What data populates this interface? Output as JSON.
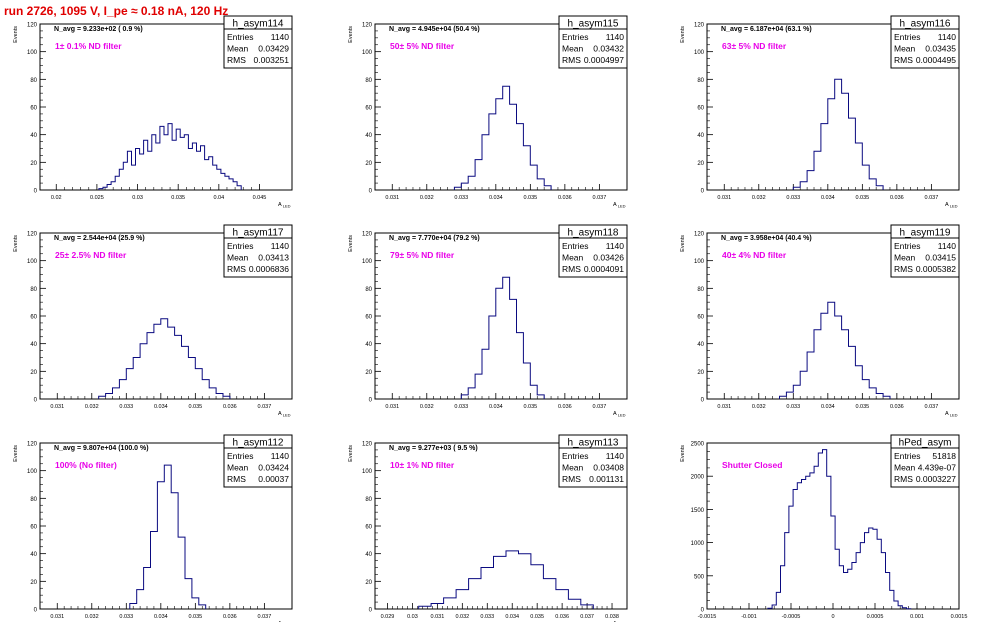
{
  "page": {
    "title": "run 2726,  1095 V, I_pe ≈ 0.18 nA, 120 Hz"
  },
  "chart_data": [
    {
      "type": "histogram",
      "hist_name": "h_asym114",
      "navg": "N_avg = 9.233e+02 ( 0.9 %)",
      "label": "1± 0.1% ND filter",
      "ylabel": "Events",
      "xlabel": "A_LED",
      "xlim": [
        0.018,
        0.049
      ],
      "ylim": [
        0,
        120
      ],
      "x_ticks": [
        0.02,
        0.025,
        0.03,
        0.035,
        0.04,
        0.045
      ],
      "x_tick_labels": [
        "0.02",
        "0.025",
        "0.03",
        "0.035",
        "0.04",
        "0.045"
      ],
      "y_ticks": [
        0,
        20,
        40,
        60,
        80,
        100,
        120
      ],
      "stats": {
        "entries": "1140",
        "mean": "0.03429",
        "rms": "0.003251"
      },
      "x": [
        0.0255,
        0.026,
        0.0265,
        0.027,
        0.0275,
        0.028,
        0.0285,
        0.029,
        0.0295,
        0.03,
        0.0305,
        0.031,
        0.0315,
        0.032,
        0.0325,
        0.033,
        0.0335,
        0.034,
        0.0345,
        0.035,
        0.0355,
        0.036,
        0.0365,
        0.037,
        0.0375,
        0.038,
        0.0385,
        0.039,
        0.0395,
        0.04,
        0.0405,
        0.041,
        0.0415,
        0.042,
        0.0425
      ],
      "values": [
        1,
        2,
        4,
        6,
        10,
        15,
        20,
        28,
        18,
        30,
        26,
        36,
        28,
        40,
        34,
        46,
        40,
        48,
        36,
        44,
        38,
        40,
        30,
        34,
        28,
        32,
        22,
        24,
        18,
        15,
        12,
        10,
        8,
        6,
        3
      ]
    },
    {
      "type": "histogram",
      "hist_name": "h_asym115",
      "navg": "N_avg = 4.945e+04 (50.4 %)",
      "label": "50± 5% ND filter",
      "ylabel": "Events",
      "xlabel": "A_LED",
      "xlim": [
        0.0305,
        0.0378
      ],
      "ylim": [
        0,
        120
      ],
      "x_ticks": [
        0.031,
        0.032,
        0.033,
        0.034,
        0.035,
        0.036,
        0.037
      ],
      "x_tick_labels": [
        "0.031",
        "0.032",
        "0.033",
        "0.034",
        "0.035",
        "0.036",
        "0.037"
      ],
      "y_ticks": [
        0,
        20,
        40,
        60,
        80,
        100,
        120
      ],
      "stats": {
        "entries": "1140",
        "mean": "0.03432",
        "rms": "0.0004997"
      },
      "x": [
        0.0329,
        0.0331,
        0.0333,
        0.0335,
        0.0337,
        0.0339,
        0.0341,
        0.0343,
        0.0345,
        0.0347,
        0.0349,
        0.0351,
        0.0353,
        0.0355
      ],
      "values": [
        2,
        5,
        10,
        22,
        40,
        55,
        66,
        75,
        62,
        48,
        32,
        18,
        8,
        3
      ]
    },
    {
      "type": "histogram",
      "hist_name": "h_asym116",
      "navg": "N_avg = 6.187e+04 (63.1 %)",
      "label": "63± 5% ND filter",
      "ylabel": "Events",
      "xlabel": "A_LED",
      "xlim": [
        0.0305,
        0.0378
      ],
      "ylim": [
        0,
        120
      ],
      "x_ticks": [
        0.031,
        0.032,
        0.033,
        0.034,
        0.035,
        0.036,
        0.037
      ],
      "x_tick_labels": [
        "0.031",
        "0.032",
        "0.033",
        "0.034",
        "0.035",
        "0.036",
        "0.037"
      ],
      "y_ticks": [
        0,
        20,
        40,
        60,
        80,
        100,
        120
      ],
      "stats": {
        "entries": "1140",
        "mean": "0.03435",
        "rms": "0.0004495"
      },
      "x": [
        0.0331,
        0.0333,
        0.0335,
        0.0337,
        0.0339,
        0.0341,
        0.0343,
        0.0345,
        0.0347,
        0.0349,
        0.0351,
        0.0353,
        0.0355
      ],
      "values": [
        2,
        6,
        14,
        28,
        48,
        66,
        80,
        70,
        52,
        34,
        18,
        8,
        3
      ]
    },
    {
      "type": "histogram",
      "hist_name": "h_asym117",
      "navg": "N_avg = 2.544e+04 (25.9 %)",
      "label": "25± 2.5% ND filter",
      "ylabel": "Events",
      "xlabel": "A_LED",
      "xlim": [
        0.0305,
        0.0378
      ],
      "ylim": [
        0,
        120
      ],
      "x_ticks": [
        0.031,
        0.032,
        0.033,
        0.034,
        0.035,
        0.036,
        0.037
      ],
      "x_tick_labels": [
        "0.031",
        "0.032",
        "0.033",
        "0.034",
        "0.035",
        "0.036",
        "0.037"
      ],
      "y_ticks": [
        0,
        20,
        40,
        60,
        80,
        100,
        120
      ],
      "stats": {
        "entries": "1140",
        "mean": "0.03413",
        "rms": "0.0006836"
      },
      "x": [
        0.0323,
        0.0325,
        0.0327,
        0.0329,
        0.0331,
        0.0333,
        0.0335,
        0.0337,
        0.0339,
        0.0341,
        0.0343,
        0.0345,
        0.0347,
        0.0349,
        0.0351,
        0.0353,
        0.0355,
        0.0357,
        0.0359
      ],
      "values": [
        2,
        4,
        8,
        14,
        22,
        30,
        40,
        48,
        54,
        58,
        52,
        46,
        38,
        30,
        22,
        14,
        8,
        4,
        2
      ]
    },
    {
      "type": "histogram",
      "hist_name": "h_asym118",
      "navg": "N_avg = 7.770e+04 (79.2 %)",
      "label": "79± 5% ND filter",
      "ylabel": "Events",
      "xlabel": "A_LED",
      "xlim": [
        0.0305,
        0.0378
      ],
      "ylim": [
        0,
        120
      ],
      "x_ticks": [
        0.031,
        0.032,
        0.033,
        0.034,
        0.035,
        0.036,
        0.037
      ],
      "x_tick_labels": [
        "0.031",
        "0.032",
        "0.033",
        "0.034",
        "0.035",
        "0.036",
        "0.037"
      ],
      "y_ticks": [
        0,
        20,
        40,
        60,
        80,
        100,
        120
      ],
      "stats": {
        "entries": "1140",
        "mean": "0.03426",
        "rms": "0.0004091"
      },
      "x": [
        0.0331,
        0.0333,
        0.0335,
        0.0337,
        0.0339,
        0.0341,
        0.0343,
        0.0345,
        0.0347,
        0.0349,
        0.0351,
        0.0353
      ],
      "values": [
        3,
        8,
        18,
        36,
        60,
        80,
        88,
        72,
        48,
        26,
        10,
        3
      ]
    },
    {
      "type": "histogram",
      "hist_name": "h_asym119",
      "navg": "N_avg = 3.958e+04 (40.4 %)",
      "label": "40± 4% ND filter",
      "ylabel": "Events",
      "xlabel": "A_LED",
      "xlim": [
        0.0305,
        0.0378
      ],
      "ylim": [
        0,
        120
      ],
      "x_ticks": [
        0.031,
        0.032,
        0.033,
        0.034,
        0.035,
        0.036,
        0.037
      ],
      "x_tick_labels": [
        "0.031",
        "0.032",
        "0.033",
        "0.034",
        "0.035",
        "0.036",
        "0.037"
      ],
      "y_ticks": [
        0,
        20,
        40,
        60,
        80,
        100,
        120
      ],
      "stats": {
        "entries": "1140",
        "mean": "0.03415",
        "rms": "0.0005382"
      },
      "x": [
        0.0327,
        0.0329,
        0.0331,
        0.0333,
        0.0335,
        0.0337,
        0.0339,
        0.0341,
        0.0343,
        0.0345,
        0.0347,
        0.0349,
        0.0351,
        0.0353,
        0.0355,
        0.0357
      ],
      "values": [
        2,
        5,
        10,
        20,
        34,
        50,
        62,
        70,
        60,
        50,
        38,
        24,
        14,
        8,
        4,
        2
      ]
    },
    {
      "type": "histogram",
      "hist_name": "h_asym112",
      "navg": "N_avg = 9.807e+04 (100.0 %)",
      "label": "100% (No filter)",
      "ylabel": "Events",
      "xlabel": "A_LED",
      "xlim": [
        0.0305,
        0.0378
      ],
      "ylim": [
        0,
        120
      ],
      "x_ticks": [
        0.031,
        0.032,
        0.033,
        0.034,
        0.035,
        0.036,
        0.037
      ],
      "x_tick_labels": [
        "0.031",
        "0.032",
        "0.033",
        "0.034",
        "0.035",
        "0.036",
        "0.037"
      ],
      "y_ticks": [
        0,
        20,
        40,
        60,
        80,
        100,
        120
      ],
      "stats": {
        "entries": "1140",
        "mean": "0.03424",
        "rms": "0.00037"
      },
      "x": [
        0.0332,
        0.0334,
        0.0336,
        0.0338,
        0.034,
        0.0342,
        0.0344,
        0.0346,
        0.0348,
        0.035,
        0.0352
      ],
      "values": [
        4,
        14,
        30,
        56,
        92,
        104,
        84,
        52,
        22,
        8,
        3
      ]
    },
    {
      "type": "histogram",
      "hist_name": "h_asym113",
      "navg": "N_avg = 9.277e+03 ( 9.5 %)",
      "label": "10± 1% ND filter",
      "ylabel": "Events",
      "xlabel": "A_LED",
      "xlim": [
        0.0285,
        0.0386
      ],
      "ylim": [
        0,
        120
      ],
      "x_ticks": [
        0.029,
        0.03,
        0.031,
        0.032,
        0.033,
        0.034,
        0.035,
        0.036,
        0.037,
        0.038
      ],
      "x_tick_labels": [
        "0.029",
        "0.03",
        "0.031",
        "0.032",
        "0.033",
        "0.034",
        "0.035",
        "0.036",
        "0.037",
        "0.038"
      ],
      "y_ticks": [
        0,
        20,
        40,
        60,
        80,
        100,
        120
      ],
      "stats": {
        "entries": "1140",
        "mean": "0.03408",
        "rms": "0.001131"
      },
      "x": [
        0.0305,
        0.031,
        0.0315,
        0.032,
        0.0325,
        0.033,
        0.0335,
        0.034,
        0.0345,
        0.035,
        0.0355,
        0.036,
        0.0365,
        0.037
      ],
      "values": [
        2,
        4,
        8,
        14,
        22,
        30,
        38,
        42,
        40,
        32,
        22,
        14,
        7,
        3
      ]
    },
    {
      "type": "histogram",
      "hist_name": "hPed_asym",
      "navg": "",
      "label": "Shutter Closed",
      "ylabel": "Events",
      "xlabel": "",
      "xlim": [
        -0.0015,
        0.0015
      ],
      "ylim": [
        0,
        2500
      ],
      "x_ticks": [
        -0.0015,
        -0.001,
        -0.0005,
        0,
        0.0005,
        0.001,
        0.0015
      ],
      "x_tick_labels": [
        "-0.0015",
        "-0.001",
        "-0.0005",
        "0",
        "0.0005",
        "0.001",
        "0.0015"
      ],
      "y_ticks": [
        0,
        500,
        1000,
        1500,
        2000,
        2500
      ],
      "stats": {
        "entries": "51818",
        "mean": "4.439e-07",
        "rms": "0.0003227"
      },
      "x": [
        -0.00075,
        -0.0007,
        -0.00065,
        -0.0006,
        -0.00055,
        -0.0005,
        -0.00045,
        -0.0004,
        -0.00035,
        -0.0003,
        -0.00025,
        -0.0002,
        -0.00015,
        -0.0001,
        -5e-05,
        0,
        5e-05,
        0.0001,
        0.00015,
        0.0002,
        0.00025,
        0.0003,
        0.00035,
        0.0004,
        0.00045,
        0.0005,
        0.00055,
        0.0006,
        0.00065,
        0.0007,
        0.00075,
        0.0008,
        0.00085,
        0.0009
      ],
      "values": [
        10,
        60,
        250,
        650,
        1150,
        1550,
        1800,
        1900,
        1950,
        2000,
        2050,
        2150,
        2350,
        2400,
        2000,
        1400,
        900,
        650,
        550,
        600,
        700,
        850,
        1000,
        1150,
        1220,
        1200,
        1050,
        850,
        550,
        280,
        120,
        50,
        20,
        5
      ]
    }
  ]
}
